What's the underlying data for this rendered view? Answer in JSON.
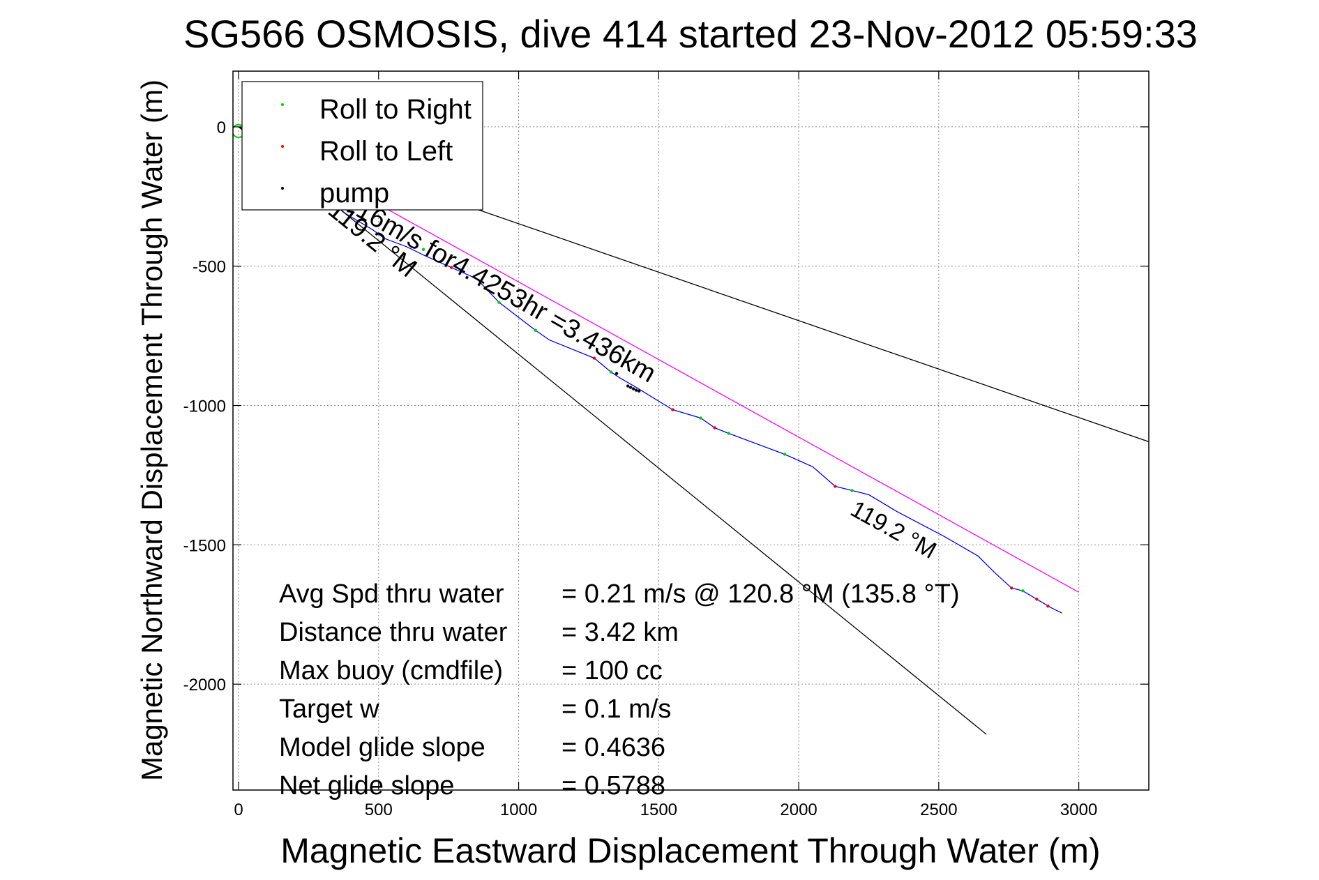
{
  "chart_data": {
    "type": "line",
    "title": "SG566 OSMOSIS, dive 414 started 23-Nov-2012 05:59:33",
    "xlabel": "Magnetic Eastward Displacement Through Water (m)",
    "ylabel": "Magnetic Northward Displacement Through Water (m)",
    "xlim": [
      -20,
      3250
    ],
    "ylim": [
      -2380,
      200
    ],
    "xticks": [
      0,
      500,
      1000,
      1500,
      2000,
      2500,
      3000
    ],
    "yticks": [
      0,
      -500,
      -1000,
      -1500,
      -2000
    ],
    "grid": true,
    "legend_position": "top-left",
    "legend": [
      {
        "label": "Roll to Right",
        "color": "#00cc00"
      },
      {
        "label": "Roll to Left",
        "color": "#ff0000"
      },
      {
        "label": "pump",
        "color": "#000000"
      }
    ],
    "series": [
      {
        "type": "line",
        "color": "#0000ff",
        "x": [
          0,
          120,
          250,
          380,
          480,
          520,
          600,
          660,
          760,
          850,
          930,
          1060,
          1110,
          1270,
          1330,
          1360,
          1420,
          1550,
          1650,
          1700,
          1750,
          1950,
          2050,
          2130,
          2190,
          2250,
          2350,
          2520,
          2640,
          2700,
          2760,
          2800,
          2850,
          2900,
          2940
        ],
        "y": [
          0,
          -40,
          -200,
          -310,
          -370,
          -400,
          -430,
          -460,
          -505,
          -545,
          -630,
          -730,
          -765,
          -830,
          -880,
          -900,
          -935,
          -1015,
          -1045,
          -1080,
          -1100,
          -1175,
          -1220,
          -1290,
          -1305,
          -1320,
          -1380,
          -1470,
          -1540,
          -1600,
          -1655,
          -1665,
          -1695,
          -1725,
          -1745
        ]
      },
      {
        "type": "line",
        "color": "#ff00ff",
        "x": [
          0,
          3000
        ],
        "y": [
          0,
          -1670
        ]
      },
      {
        "type": "line",
        "color": "#000000",
        "x": [
          0,
          3250
        ],
        "y": [
          0,
          -1130
        ]
      },
      {
        "type": "line",
        "color": "#000000",
        "x": [
          0,
          2670
        ],
        "y": [
          0,
          -2180
        ]
      },
      {
        "type": "scatter",
        "name": "Roll to Right",
        "color": "#00cc00",
        "x": [
          660,
          880,
          930,
          1060,
          1330,
          1650,
          1750,
          1950,
          2190,
          2800
        ],
        "y": [
          -440,
          -580,
          -630,
          -730,
          -880,
          -1045,
          -1100,
          -1175,
          -1305,
          -1665
        ]
      },
      {
        "type": "scatter",
        "name": "Roll to Left",
        "color": "#ff0000",
        "x": [
          760,
          1270,
          1550,
          1700,
          2130,
          2760,
          2850,
          2890
        ],
        "y": [
          -505,
          -830,
          -1015,
          -1080,
          -1290,
          -1655,
          -1695,
          -1720
        ]
      },
      {
        "type": "scatter",
        "name": "pump",
        "color": "#000000",
        "x": [
          1350,
          1390,
          1400,
          1410,
          1420,
          1430
        ],
        "y": [
          -885,
          -930,
          -935,
          -940,
          -945,
          -948
        ]
      }
    ],
    "annotations": {
      "heading_rate": "0.216m/s for4.4253hr =3.436km",
      "heading_top": "119.2 °M",
      "heading_bottom": "119.2 °M"
    },
    "stats": [
      {
        "label": "Avg Spd thru water",
        "value": "=  0.21 m/s @ 120.8 °M (135.8 °T)"
      },
      {
        "label": "Distance thru water",
        "value": "=  3.42 km"
      },
      {
        "label": "Max buoy (cmdfile)",
        "value": "= 100 cc"
      },
      {
        "label": "Target w",
        "value": "= 0.1 m/s"
      },
      {
        "label": "Model glide slope",
        "value": "= 0.4636"
      },
      {
        "label": "Net glide slope",
        "value": "= 0.5788"
      }
    ]
  }
}
